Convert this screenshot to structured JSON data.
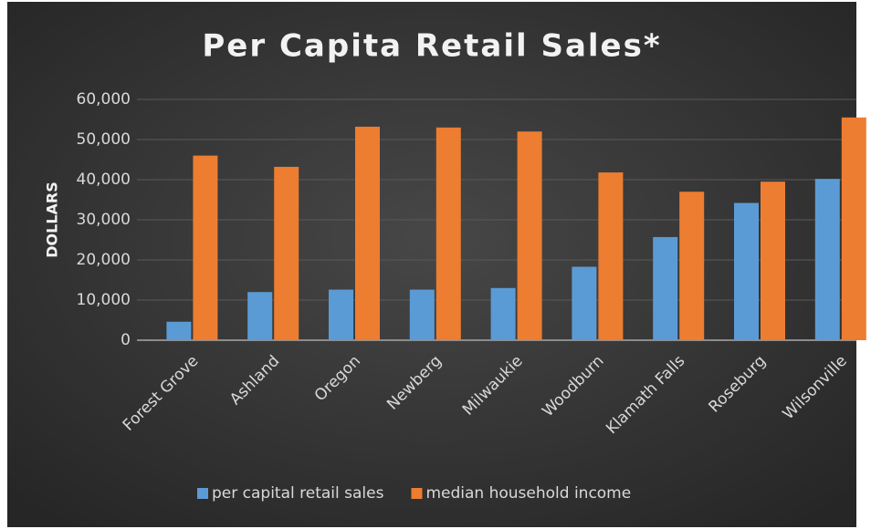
{
  "chart_data": {
    "type": "bar",
    "title": "Per Capita Retail Sales*",
    "y_label": "DOLLARS",
    "categories": [
      "Forest Grove",
      "Ashland",
      "Oregon",
      "Newberg",
      "Milwaukie",
      "Woodburn",
      "Klamath Falls",
      "Roseburg",
      "Wilsonville"
    ],
    "series": [
      {
        "name": "per capital retail sales",
        "color": "#5b9bd5",
        "values": [
          4600,
          12000,
          12600,
          12600,
          13000,
          18300,
          25700,
          34200,
          40200
        ]
      },
      {
        "name": "median household income",
        "color": "#ed7d31",
        "values": [
          46000,
          43200,
          53200,
          53000,
          52000,
          41800,
          37000,
          39500,
          55500
        ]
      }
    ],
    "ylim": [
      0,
      60000
    ],
    "yticks": [
      0,
      {
        "value": 10000,
        "label": "10,000"
      },
      {
        "value": 20000,
        "label": "20,000"
      },
      {
        "value": 30000,
        "label": "30,000"
      },
      {
        "value": 40000,
        "label": "40,000"
      },
      {
        "value": 50000,
        "label": "50,000"
      },
      {
        "value": 60000,
        "label": "60,000"
      }
    ],
    "grid": true,
    "legend": "bottom"
  }
}
